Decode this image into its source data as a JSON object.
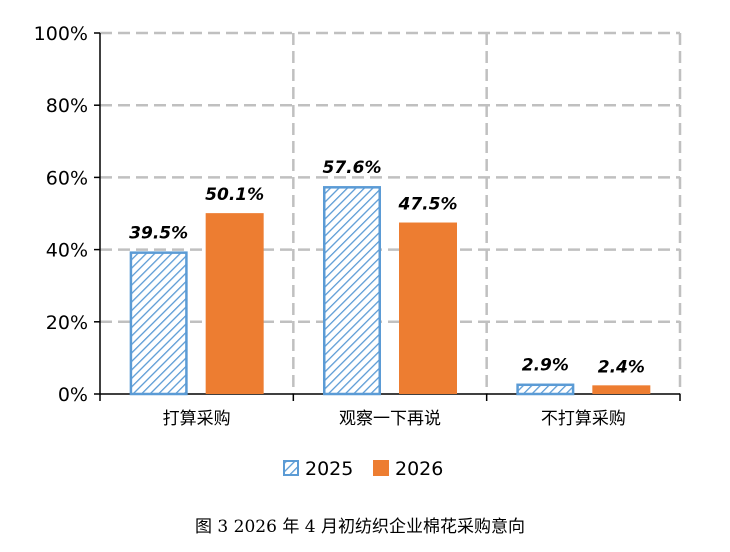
{
  "chart_data": {
    "type": "bar",
    "categories": [
      "打算采购",
      "观察一下再说",
      "不打算采购"
    ],
    "series": [
      {
        "name": "2025",
        "values": [
          39.5,
          57.6,
          2.9
        ],
        "labels": [
          "39.5%",
          "57.6%",
          "2.9%"
        ],
        "fill": "hatched",
        "color": "#5b9bd5"
      },
      {
        "name": "2026",
        "values": [
          50.1,
          47.5,
          2.4
        ],
        "labels": [
          "50.1%",
          "47.5%",
          "2.4%"
        ],
        "fill": "solid",
        "color": "#ed7d31"
      }
    ],
    "y_ticks": [
      "0%",
      "20%",
      "40%",
      "60%",
      "80%",
      "100%"
    ],
    "ylim": [
      0,
      100
    ],
    "grid": true,
    "legend_position": "bottom",
    "caption": "图 3   2026 年 4 月初纺织企业棉花采购意向"
  }
}
